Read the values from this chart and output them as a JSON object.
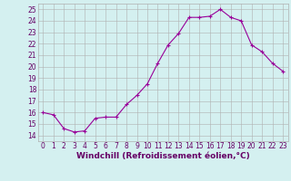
{
  "x": [
    0,
    1,
    2,
    3,
    4,
    5,
    6,
    7,
    8,
    9,
    10,
    11,
    12,
    13,
    14,
    15,
    16,
    17,
    18,
    19,
    20,
    21,
    22,
    23
  ],
  "y": [
    16.0,
    15.8,
    14.6,
    14.3,
    14.4,
    15.5,
    15.6,
    15.6,
    16.7,
    17.5,
    18.5,
    20.3,
    21.9,
    22.9,
    24.3,
    24.3,
    24.4,
    25.0,
    24.3,
    24.0,
    21.9,
    21.3,
    20.3,
    19.6
  ],
  "line_color": "#990099",
  "marker": "+",
  "bg_color": "#d4f0f0",
  "grid_color": "#b0b0b0",
  "xlabel": "Windchill (Refroidissement éolien,°C)",
  "xlim": [
    -0.5,
    23.5
  ],
  "ylim": [
    13.5,
    25.5
  ],
  "yticks": [
    14,
    15,
    16,
    17,
    18,
    19,
    20,
    21,
    22,
    23,
    24,
    25
  ],
  "xticks": [
    0,
    1,
    2,
    3,
    4,
    5,
    6,
    7,
    8,
    9,
    10,
    11,
    12,
    13,
    14,
    15,
    16,
    17,
    18,
    19,
    20,
    21,
    22,
    23
  ],
  "tick_color": "#660066",
  "label_color": "#660066",
  "label_fontsize": 6.5,
  "tick_fontsize": 5.5
}
